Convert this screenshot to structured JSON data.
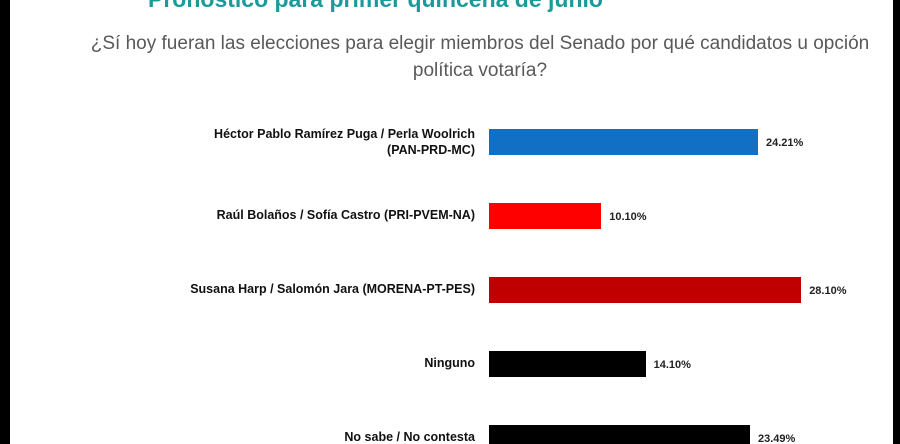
{
  "chart_data": {
    "type": "bar",
    "orientation": "horizontal",
    "title": "Pronóstico para primer quincena de junio",
    "subtitle": "¿Sí hoy fueran las elecciones para elegir miembros del Senado por qué candidatos u opción política votaría?",
    "categories": [
      "Héctor Pablo Ramírez Puga / Perla Woolrich (PAN-PRD-MC)",
      "Raúl Bolaños / Sofía Castro (PRI-PVEM-NA)",
      "Susana Harp / Salomón Jara (MORENA-PT-PES)",
      "Ninguno",
      "No sabe / No contesta"
    ],
    "category_lines": [
      [
        "Héctor Pablo Ramírez Puga / Perla Woolrich",
        "(PAN-PRD-MC)"
      ],
      [
        "Raúl Bolaños / Sofía Castro (PRI-PVEM-NA)"
      ],
      [
        "Susana Harp / Salomón Jara (MORENA-PT-PES)"
      ],
      [
        "Ninguno"
      ],
      [
        "No sabe / No contesta"
      ]
    ],
    "values": [
      24.21,
      10.1,
      28.1,
      14.1,
      23.49
    ],
    "value_labels": [
      "24.21%",
      "10.10%",
      "28.10%",
      "14.10%",
      "23.49%"
    ],
    "colors": [
      "#1170c4",
      "#ff0000",
      "#c00000",
      "#000000",
      "#000000"
    ],
    "grid": false,
    "legend": "none"
  }
}
